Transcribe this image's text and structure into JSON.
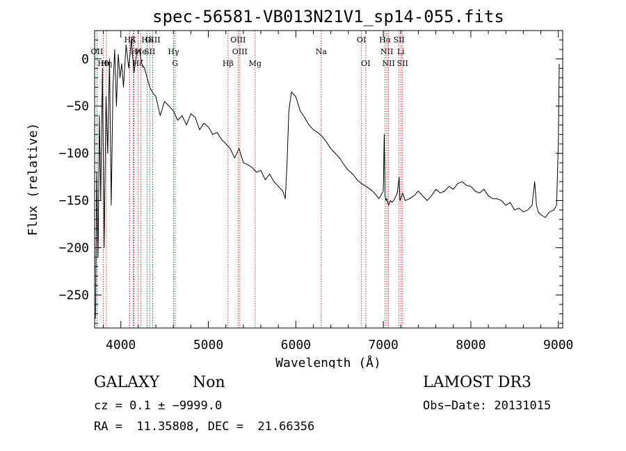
{
  "chart_data": {
    "type": "line",
    "title": "spec-56581-VB013N21V1_sp14-055.fits",
    "xlabel": "Wavelength (Å)",
    "ylabel": "Flux (relative)",
    "xlim": [
      3700,
      9050
    ],
    "ylim": [
      -285,
      30
    ],
    "xticks": [
      4000,
      5000,
      6000,
      7000,
      8000,
      9000
    ],
    "yticks": [
      0,
      -50,
      -100,
      -150,
      -200,
      -250
    ],
    "grid": false,
    "series": [
      {
        "name": "spectrum",
        "x": [
          3710,
          3725,
          3740,
          3755,
          3770,
          3790,
          3810,
          3830,
          3850,
          3870,
          3890,
          3910,
          3930,
          3950,
          3970,
          3990,
          4010,
          4030,
          4060,
          4090,
          4120,
          4150,
          4180,
          4210,
          4240,
          4270,
          4300,
          4330,
          4360,
          4400,
          4450,
          4500,
          4550,
          4600,
          4650,
          4700,
          4750,
          4800,
          4850,
          4900,
          4950,
          5000,
          5050,
          5100,
          5150,
          5200,
          5250,
          5300,
          5350,
          5400,
          5450,
          5500,
          5550,
          5600,
          5650,
          5700,
          5750,
          5800,
          5850,
          5870,
          5880,
          5900,
          5920,
          5950,
          6000,
          6050,
          6100,
          6150,
          6200,
          6250,
          6300,
          6350,
          6400,
          6450,
          6500,
          6550,
          6600,
          6650,
          6700,
          6750,
          6800,
          6850,
          6900,
          6950,
          7000,
          7010,
          7020,
          7030,
          7040,
          7060,
          7080,
          7100,
          7130,
          7160,
          7180,
          7190,
          7200,
          7220,
          7250,
          7300,
          7350,
          7400,
          7450,
          7500,
          7550,
          7600,
          7650,
          7700,
          7750,
          7800,
          7850,
          7900,
          7950,
          8000,
          8050,
          8100,
          8150,
          8200,
          8250,
          8300,
          8350,
          8400,
          8450,
          8500,
          8550,
          8600,
          8650,
          8700,
          8730,
          8750,
          8770,
          8800,
          8850,
          8900,
          8950,
          8980,
          9000,
          9010
        ],
        "y": [
          -275,
          -120,
          -210,
          -60,
          -150,
          -10,
          -200,
          -40,
          -100,
          0,
          -155,
          -30,
          10,
          -50,
          5,
          -20,
          -5,
          -30,
          15,
          -10,
          20,
          -15,
          5,
          10,
          -5,
          -10,
          -20,
          -30,
          -35,
          -40,
          -60,
          -45,
          -50,
          -55,
          -65,
          -60,
          -70,
          -58,
          -62,
          -75,
          -68,
          -72,
          -80,
          -78,
          -85,
          -90,
          -95,
          -105,
          -95,
          -110,
          -112,
          -115,
          -120,
          -118,
          -128,
          -122,
          -130,
          -135,
          -140,
          -145,
          -148,
          -110,
          -55,
          -35,
          -40,
          -55,
          -62,
          -70,
          -75,
          -78,
          -82,
          -88,
          -95,
          -100,
          -105,
          -112,
          -118,
          -122,
          -128,
          -132,
          -135,
          -138,
          -142,
          -148,
          -140,
          -80,
          -145,
          -150,
          -148,
          -155,
          -150,
          -152,
          -148,
          -142,
          -125,
          -150,
          -148,
          -142,
          -150,
          -148,
          -145,
          -140,
          -145,
          -150,
          -145,
          -138,
          -142,
          -140,
          -135,
          -138,
          -132,
          -130,
          -134,
          -135,
          -140,
          -142,
          -138,
          -145,
          -148,
          -148,
          -150,
          -155,
          -152,
          -160,
          -158,
          -162,
          -160,
          -155,
          -130,
          -155,
          -162,
          -165,
          -168,
          -162,
          -160,
          -155,
          -90,
          -5
        ]
      }
    ],
    "line_markers": [
      {
        "label": "OII",
        "x": 3727,
        "row": 2
      },
      {
        "label": "Hθ",
        "x": 3798,
        "row": 3
      },
      {
        "label": "Hη",
        "x": 3835,
        "row": 3
      },
      {
        "label": "Hβ",
        "x": 4102,
        "row": 1
      },
      {
        "label": "K",
        "x": 4140,
        "row": 1
      },
      {
        "label": "H",
        "x": 4150,
        "row": 2
      },
      {
        "label": "Hζ",
        "x": 4196,
        "row": 3
      },
      {
        "label": "He",
        "x": 4230,
        "row": 2
      },
      {
        "label": "Hδ",
        "x": 4300,
        "row": 1
      },
      {
        "label": "SII",
        "x": 4330,
        "row": 2
      },
      {
        "label": "OIII",
        "x": 4364,
        "row": 1
      },
      {
        "label": "Hγ",
        "x": 4602,
        "row": 2
      },
      {
        "label": "G",
        "x": 4620,
        "row": 3
      },
      {
        "label": "Hβ",
        "x": 5225,
        "row": 3
      },
      {
        "label": "OIII",
        "x": 5340,
        "row": 1
      },
      {
        "label": "OIII",
        "x": 5360,
        "row": 2
      },
      {
        "label": "Mg",
        "x": 5535,
        "row": 3
      },
      {
        "label": "Na",
        "x": 6290,
        "row": 2
      },
      {
        "label": "OI",
        "x": 6750,
        "row": 1
      },
      {
        "label": "OI",
        "x": 6800,
        "row": 3
      },
      {
        "label": "Hα",
        "x": 7020,
        "row": 1
      },
      {
        "label": "NII",
        "x": 7040,
        "row": 2
      },
      {
        "label": "NII",
        "x": 7060,
        "row": 3
      },
      {
        "label": "SII",
        "x": 7180,
        "row": 1
      },
      {
        "label": "Li",
        "x": 7200,
        "row": 2
      },
      {
        "label": "SII",
        "x": 7220,
        "row": 3
      }
    ]
  },
  "info": {
    "object_class": "GALAXY",
    "subclass": "Non",
    "survey": "LAMOST DR3",
    "redshift": "cz = 0.1 ± −9999.0",
    "obs_date": "Obs−Date: 20131015",
    "coords": "RA =  11.35808, DEC =  21.66356"
  }
}
